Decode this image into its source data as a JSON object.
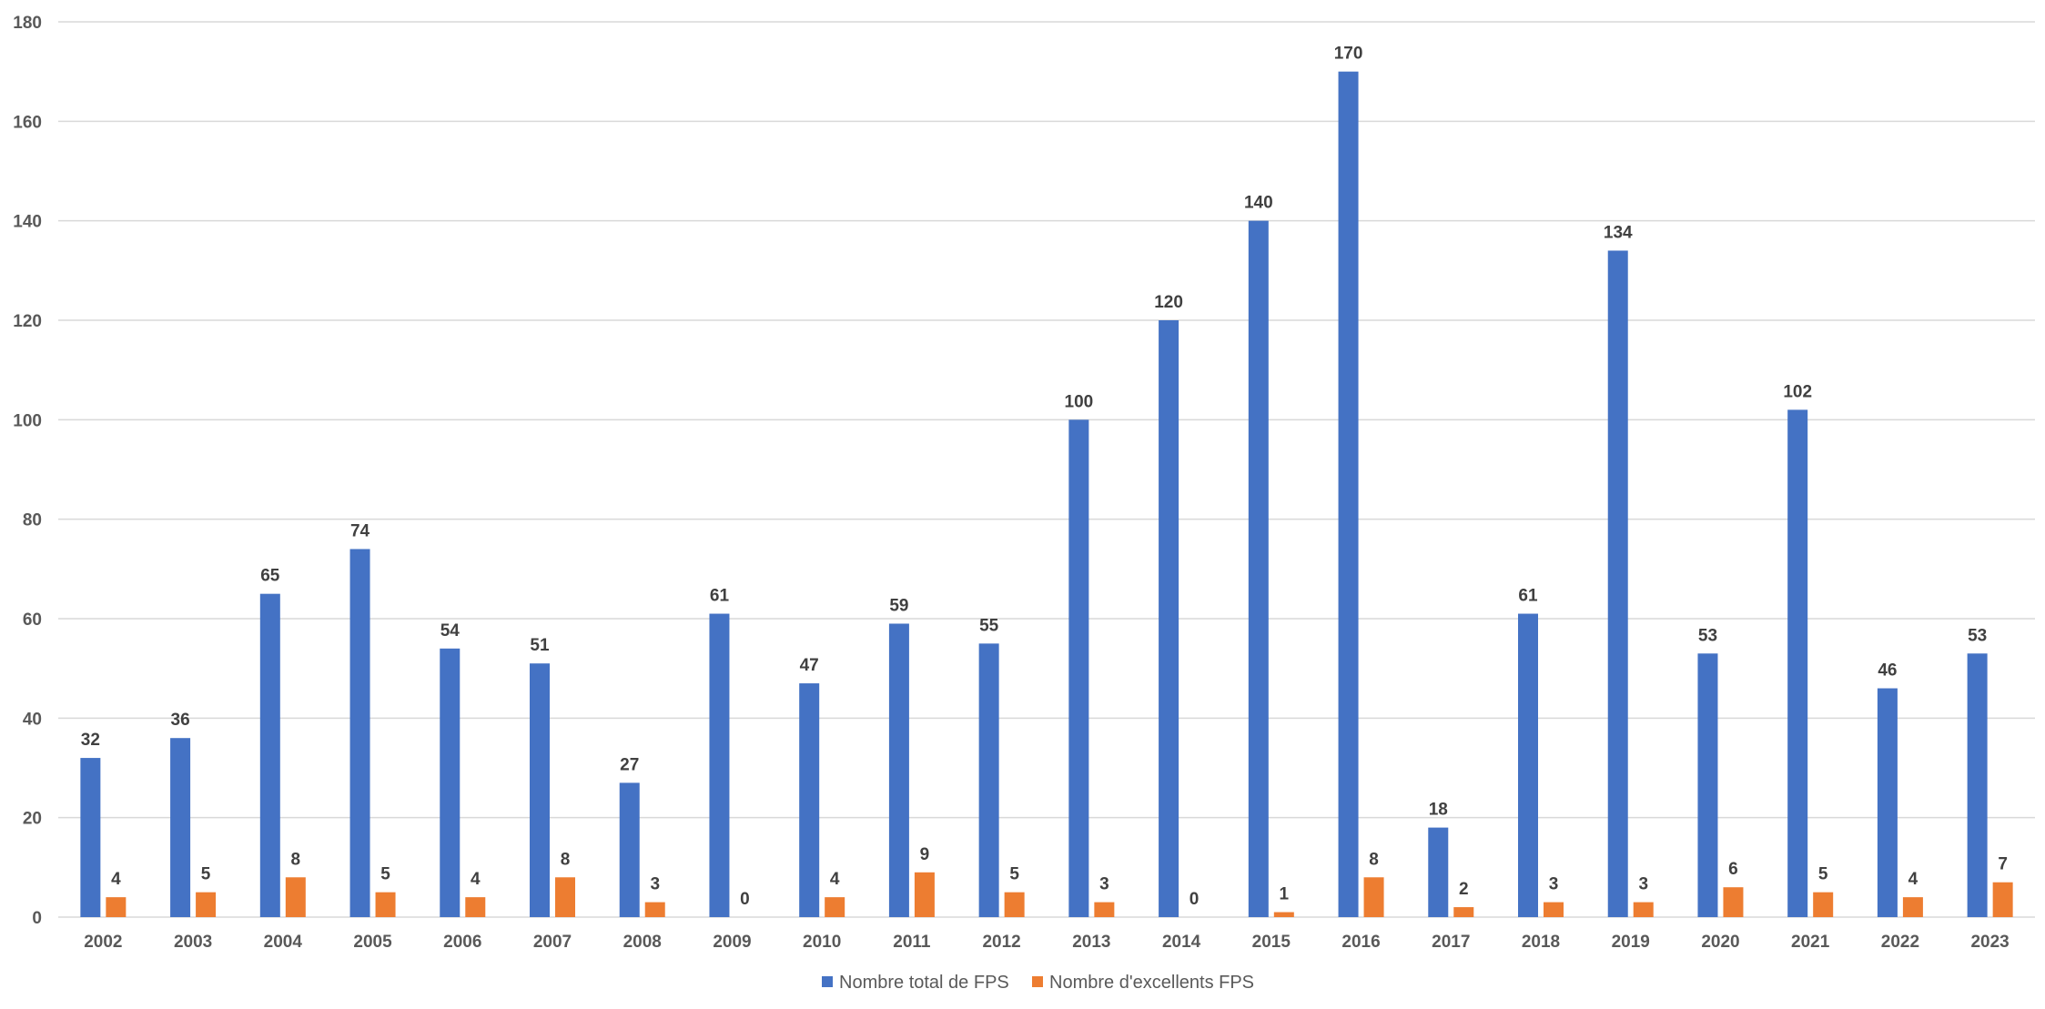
{
  "chart_data": {
    "type": "bar",
    "title": "",
    "xlabel": "",
    "ylabel": "",
    "ylim": [
      0,
      180
    ],
    "yticks": [
      0,
      20,
      40,
      60,
      80,
      100,
      120,
      140,
      160,
      180
    ],
    "grid": true,
    "legend_position": "bottom",
    "categories": [
      "2002",
      "2003",
      "2004",
      "2005",
      "2006",
      "2007",
      "2008",
      "2009",
      "2010",
      "2011",
      "2012",
      "2013",
      "2014",
      "2015",
      "2016",
      "2017",
      "2018",
      "2019",
      "2020",
      "2021",
      "2022",
      "2023"
    ],
    "series": [
      {
        "name": "Nombre total de FPS",
        "color": "#4472C4",
        "values": [
          32,
          36,
          65,
          74,
          54,
          51,
          27,
          61,
          47,
          59,
          55,
          100,
          120,
          140,
          170,
          18,
          61,
          134,
          53,
          102,
          46,
          53
        ]
      },
      {
        "name": "Nombre d'excellents FPS",
        "color": "#ED7D31",
        "values": [
          4,
          5,
          8,
          5,
          4,
          8,
          3,
          0,
          4,
          9,
          5,
          3,
          0,
          1,
          8,
          2,
          3,
          3,
          6,
          5,
          4,
          7
        ]
      }
    ]
  }
}
